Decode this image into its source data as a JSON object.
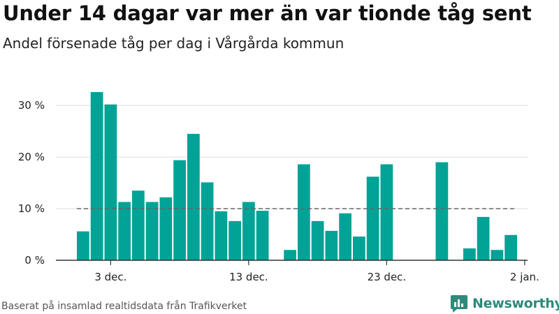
{
  "header": {
    "title": "Under 14 dagar var mer än var tionde tåg sent",
    "subtitle": "Andel försenade tåg per dag i Vårgårda kommun"
  },
  "footer": {
    "source": "Baserat på insamlad realtidsdata från Trafikverket",
    "brand": "Newsworthy"
  },
  "colors": {
    "bar": "#00a396",
    "reference_line": "#666666",
    "grid": "#dddddd",
    "axis": "#333333",
    "brand": "#2e8a7a"
  },
  "icons": {
    "brand_logo": "bar-chart-chat-icon"
  },
  "chart_data": {
    "type": "bar",
    "title": "Under 14 dagar var mer än var tionde tåg sent",
    "subtitle": "Andel försenade tåg per dag i Vårgårda kommun",
    "xlabel": "",
    "ylabel": "",
    "x_ticks": [
      {
        "label": "3 dec.",
        "date": "2021-12-03"
      },
      {
        "label": "13 dec.",
        "date": "2021-12-13"
      },
      {
        "label": "23 dec.",
        "date": "2021-12-23"
      },
      {
        "label": "2 jan.",
        "date": "2022-01-02"
      }
    ],
    "y_ticks": [
      {
        "value": 0,
        "label": "0 %"
      },
      {
        "value": 10,
        "label": "10 %"
      },
      {
        "value": 20,
        "label": "20 %"
      },
      {
        "value": 30,
        "label": "30 %"
      }
    ],
    "ylim": [
      0,
      33
    ],
    "xlim": [
      "2021-11-30",
      "2022-01-02"
    ],
    "grid": true,
    "reference_line": {
      "value": 10,
      "style": "dashed",
      "from": "2021-12-01",
      "to": "2022-01-01"
    },
    "series": [
      {
        "values": [
          {
            "date": "2021-12-01",
            "value": 5.6
          },
          {
            "date": "2021-12-02",
            "value": 32.6
          },
          {
            "date": "2021-12-03",
            "value": 30.2
          },
          {
            "date": "2021-12-04",
            "value": 11.3
          },
          {
            "date": "2021-12-05",
            "value": 13.5
          },
          {
            "date": "2021-12-06",
            "value": 11.3
          },
          {
            "date": "2021-12-07",
            "value": 12.2
          },
          {
            "date": "2021-12-08",
            "value": 19.4
          },
          {
            "date": "2021-12-09",
            "value": 24.5
          },
          {
            "date": "2021-12-10",
            "value": 15.1
          },
          {
            "date": "2021-12-11",
            "value": 9.5
          },
          {
            "date": "2021-12-12",
            "value": 7.6
          },
          {
            "date": "2021-12-13",
            "value": 11.3
          },
          {
            "date": "2021-12-14",
            "value": 9.6
          },
          {
            "date": "2021-12-16",
            "value": 2.0
          },
          {
            "date": "2021-12-17",
            "value": 18.6
          },
          {
            "date": "2021-12-18",
            "value": 7.6
          },
          {
            "date": "2021-12-19",
            "value": 5.7
          },
          {
            "date": "2021-12-20",
            "value": 9.1
          },
          {
            "date": "2021-12-21",
            "value": 4.6
          },
          {
            "date": "2021-12-22",
            "value": 16.2
          },
          {
            "date": "2021-12-23",
            "value": 18.6
          },
          {
            "date": "2021-12-27",
            "value": 19.0
          },
          {
            "date": "2021-12-29",
            "value": 2.3
          },
          {
            "date": "2021-12-30",
            "value": 8.4
          },
          {
            "date": "2021-12-31",
            "value": 2.0
          },
          {
            "date": "2022-01-01",
            "value": 4.9
          }
        ]
      }
    ]
  }
}
